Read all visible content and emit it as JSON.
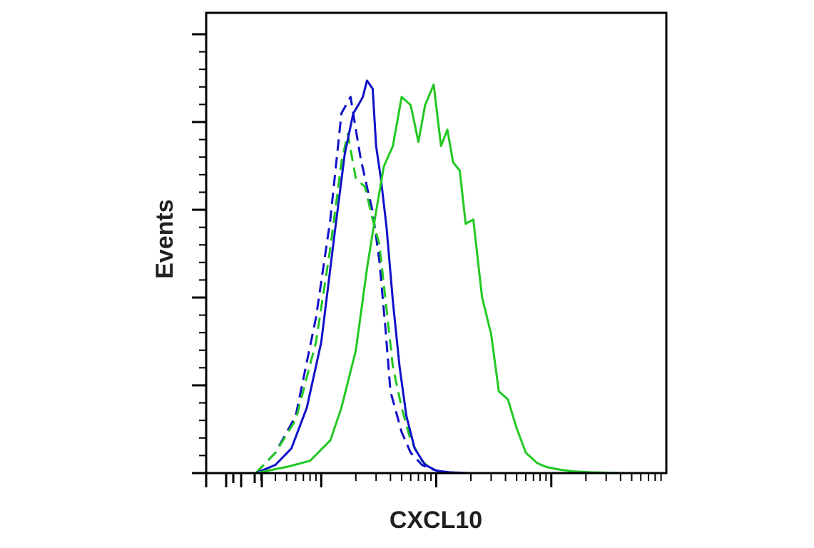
{
  "chart_data": {
    "type": "line",
    "xlabel": "CXCL10",
    "ylabel": "Events",
    "x_scale": "log",
    "xlim": [
      0.01,
      100
    ],
    "ylim": [
      0,
      1
    ],
    "tick_labels_shown": false,
    "grid": false,
    "legend": "none",
    "series": [
      {
        "color": "#1010c8",
        "style": "dashed",
        "x": [
          0.027,
          0.04,
          0.06,
          0.09,
          0.12,
          0.15,
          0.18,
          0.2,
          0.22,
          0.25,
          0.28,
          0.32,
          0.36,
          0.4,
          0.5,
          0.6,
          0.75,
          0.9,
          1.1,
          1.5
        ],
        "y": [
          0.0,
          0.05,
          0.14,
          0.38,
          0.62,
          0.88,
          0.92,
          0.84,
          0.77,
          0.7,
          0.64,
          0.52,
          0.36,
          0.2,
          0.1,
          0.05,
          0.02,
          0.01,
          0.004,
          0.0
        ]
      },
      {
        "color": "#22c822",
        "style": "dashed",
        "x": [
          0.027,
          0.04,
          0.06,
          0.09,
          0.12,
          0.15,
          0.17,
          0.2,
          0.24,
          0.28,
          0.32,
          0.37,
          0.42,
          0.5,
          0.6,
          0.75,
          0.9,
          1.1,
          1.5
        ],
        "y": [
          0.0,
          0.05,
          0.13,
          0.32,
          0.55,
          0.76,
          0.83,
          0.72,
          0.7,
          0.62,
          0.56,
          0.4,
          0.26,
          0.16,
          0.08,
          0.03,
          0.01,
          0.004,
          0.0
        ]
      },
      {
        "color": "#1010c8",
        "style": "solid",
        "x": [
          0.027,
          0.04,
          0.055,
          0.075,
          0.1,
          0.13,
          0.16,
          0.19,
          0.21,
          0.23,
          0.25,
          0.28,
          0.3,
          0.33,
          0.37,
          0.42,
          0.48,
          0.55,
          0.65,
          0.8,
          1.0,
          1.3,
          2.0
        ],
        "y": [
          0.0,
          0.02,
          0.06,
          0.16,
          0.32,
          0.58,
          0.78,
          0.88,
          0.9,
          0.92,
          0.96,
          0.94,
          0.8,
          0.72,
          0.6,
          0.42,
          0.26,
          0.14,
          0.06,
          0.02,
          0.006,
          0.002,
          0.0
        ]
      },
      {
        "color": "#22c822",
        "style": "solid",
        "x": [
          0.01,
          0.027,
          0.05,
          0.08,
          0.12,
          0.15,
          0.2,
          0.25,
          0.3,
          0.35,
          0.42,
          0.5,
          0.6,
          0.7,
          0.8,
          0.95,
          1.1,
          1.25,
          1.4,
          1.6,
          1.8,
          2.1,
          2.5,
          3.0,
          3.5,
          4.2,
          5.0,
          6.0,
          7.5,
          9.0,
          12,
          16,
          22,
          30,
          45,
          60,
          100
        ],
        "y": [
          0.0,
          0.0,
          0.015,
          0.03,
          0.08,
          0.16,
          0.3,
          0.5,
          0.64,
          0.75,
          0.8,
          0.92,
          0.9,
          0.81,
          0.9,
          0.95,
          0.8,
          0.84,
          0.76,
          0.74,
          0.61,
          0.62,
          0.43,
          0.34,
          0.2,
          0.18,
          0.11,
          0.05,
          0.025,
          0.015,
          0.008,
          0.004,
          0.002,
          0.001,
          0.0,
          0.0,
          0.0
        ]
      }
    ]
  }
}
